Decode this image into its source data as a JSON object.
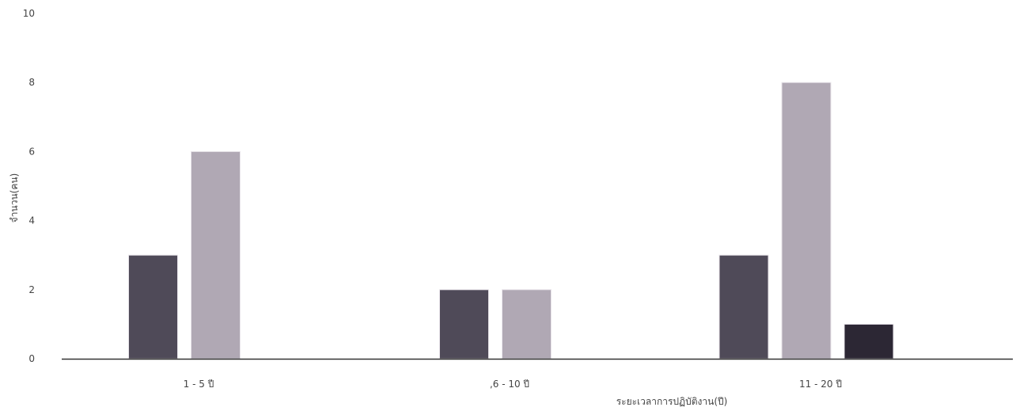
{
  "chart_data": {
    "type": "bar",
    "categories": [
      "1 - 5 ปี",
      ",6 - 10 ปี",
      "11 - 20 ปี"
    ],
    "series": [
      {
        "values": [
          3,
          2,
          3
        ],
        "color": "#4f4a58"
      },
      {
        "values": [
          6,
          2,
          8
        ],
        "color": "#b0a8b4"
      },
      {
        "values": [
          0,
          0,
          1
        ],
        "color": "#2c2734"
      }
    ],
    "xlabel": "ระยะเวลาการปฏิบัติงาน(ปี)",
    "ylabel": "จำนวน(คน)",
    "ylim": [
      0,
      10
    ],
    "yticks": [
      "0",
      "2",
      "4",
      "6",
      "8",
      "10"
    ],
    "grid": false,
    "legend": "none"
  }
}
